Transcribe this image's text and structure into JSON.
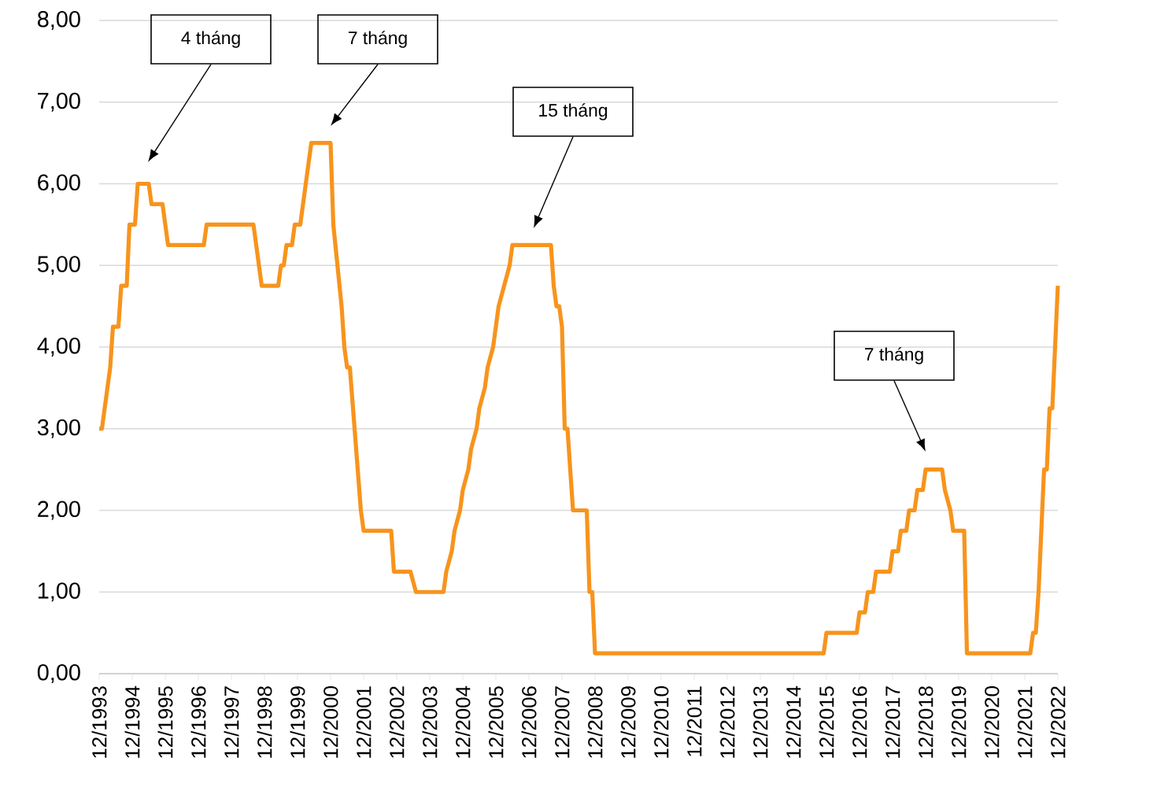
{
  "chart_data": {
    "type": "line",
    "x": [
      "1993-12",
      "1994-01",
      "1994-02",
      "1994-03",
      "1994-04",
      "1994-05",
      "1994-07",
      "1994-08",
      "1994-10",
      "1994-11",
      "1995-01",
      "1995-02",
      "1995-06",
      "1995-07",
      "1995-11",
      "1996-01",
      "1997-02",
      "1997-03",
      "1998-08",
      "1998-10",
      "1998-11",
      "1999-05",
      "1999-06",
      "1999-07",
      "1999-08",
      "1999-10",
      "1999-11",
      "2000-01",
      "2000-02",
      "2000-03",
      "2000-05",
      "2000-12",
      "2001-01",
      "2001-04",
      "2001-05",
      "2001-06",
      "2001-07",
      "2001-11",
      "2001-12",
      "2002-10",
      "2002-11",
      "2003-05",
      "2003-07",
      "2004-05",
      "2004-06",
      "2004-08",
      "2004-09",
      "2004-11",
      "2004-12",
      "2005-02",
      "2005-03",
      "2005-05",
      "2005-06",
      "2005-08",
      "2005-09",
      "2005-11",
      "2005-12",
      "2006-01",
      "2006-03",
      "2006-05",
      "2006-06",
      "2007-08",
      "2007-09",
      "2007-10",
      "2007-11",
      "2007-12",
      "2008-01",
      "2008-02",
      "2008-04",
      "2008-09",
      "2008-10",
      "2008-11",
      "2008-12",
      "2015-11",
      "2015-12",
      "2016-11",
      "2016-12",
      "2017-02",
      "2017-03",
      "2017-05",
      "2017-06",
      "2017-11",
      "2017-12",
      "2018-02",
      "2018-03",
      "2018-05",
      "2018-06",
      "2018-08",
      "2018-09",
      "2018-11",
      "2018-12",
      "2019-06",
      "2019-07",
      "2019-09",
      "2019-10",
      "2020-02",
      "2020-03",
      "2022-02",
      "2022-03",
      "2022-04",
      "2022-05",
      "2022-06",
      "2022-07",
      "2022-08",
      "2022-09",
      "2022-10",
      "2022-11",
      "2022-12"
    ],
    "series": [
      {
        "color": "#f7941d",
        "values": [
          3.0,
          3.0,
          3.25,
          3.5,
          3.75,
          4.25,
          4.25,
          4.75,
          4.75,
          5.5,
          5.5,
          6.0,
          6.0,
          5.75,
          5.75,
          5.25,
          5.25,
          5.5,
          5.5,
          5.0,
          4.75,
          4.75,
          5.0,
          5.0,
          5.25,
          5.25,
          5.5,
          5.5,
          5.75,
          6.0,
          6.5,
          6.5,
          5.5,
          4.5,
          4.0,
          3.75,
          3.75,
          2.0,
          1.75,
          1.75,
          1.25,
          1.25,
          1.0,
          1.0,
          1.25,
          1.5,
          1.75,
          2.0,
          2.25,
          2.5,
          2.75,
          3.0,
          3.25,
          3.5,
          3.75,
          4.0,
          4.25,
          4.5,
          4.75,
          5.0,
          5.25,
          5.25,
          4.75,
          4.5,
          4.5,
          4.25,
          3.0,
          3.0,
          2.0,
          2.0,
          1.0,
          1.0,
          0.25,
          0.25,
          0.5,
          0.5,
          0.75,
          0.75,
          1.0,
          1.0,
          1.25,
          1.25,
          1.5,
          1.5,
          1.75,
          1.75,
          2.0,
          2.0,
          2.25,
          2.25,
          2.5,
          2.5,
          2.25,
          2.0,
          1.75,
          1.75,
          0.25,
          0.25,
          0.5,
          0.5,
          1.0,
          1.75,
          2.5,
          2.5,
          3.25,
          3.25,
          4.0,
          4.75
        ]
      }
    ],
    "xlim": [
      "1993-12",
      "2022-12"
    ],
    "xticks": [
      {
        "value": "1993-12",
        "label": "12/1993"
      },
      {
        "value": "1994-12",
        "label": "12/1994"
      },
      {
        "value": "1995-12",
        "label": "12/1995"
      },
      {
        "value": "1996-12",
        "label": "12/1996"
      },
      {
        "value": "1997-12",
        "label": "12/1997"
      },
      {
        "value": "1998-12",
        "label": "12/1998"
      },
      {
        "value": "1999-12",
        "label": "12/1999"
      },
      {
        "value": "2000-12",
        "label": "12/2000"
      },
      {
        "value": "2001-12",
        "label": "12/2001"
      },
      {
        "value": "2002-12",
        "label": "12/2002"
      },
      {
        "value": "2003-12",
        "label": "12/2003"
      },
      {
        "value": "2004-12",
        "label": "12/2004"
      },
      {
        "value": "2005-12",
        "label": "12/2005"
      },
      {
        "value": "2006-12",
        "label": "12/2006"
      },
      {
        "value": "2007-12",
        "label": "12/2007"
      },
      {
        "value": "2008-12",
        "label": "12/2008"
      },
      {
        "value": "2009-12",
        "label": "12/2009"
      },
      {
        "value": "2010-12",
        "label": "12/2010"
      },
      {
        "value": "2011-12",
        "label": "12/2011"
      },
      {
        "value": "2012-12",
        "label": "12/2012"
      },
      {
        "value": "2013-12",
        "label": "12/2013"
      },
      {
        "value": "2014-12",
        "label": "12/2014"
      },
      {
        "value": "2015-12",
        "label": "12/2015"
      },
      {
        "value": "2016-12",
        "label": "12/2016"
      },
      {
        "value": "2017-12",
        "label": "12/2017"
      },
      {
        "value": "2018-12",
        "label": "12/2018"
      },
      {
        "value": "2019-12",
        "label": "12/2019"
      },
      {
        "value": "2020-12",
        "label": "12/2020"
      },
      {
        "value": "2021-12",
        "label": "12/2021"
      },
      {
        "value": "2022-12",
        "label": "12/2022"
      }
    ],
    "ylim": [
      0,
      8
    ],
    "yticks": [
      {
        "value": 0,
        "label": "0,00"
      },
      {
        "value": 1,
        "label": "1,00"
      },
      {
        "value": 2,
        "label": "2,00"
      },
      {
        "value": 3,
        "label": "3,00"
      },
      {
        "value": 4,
        "label": "4,00"
      },
      {
        "value": 5,
        "label": "5,00"
      },
      {
        "value": 6,
        "label": "6,00"
      },
      {
        "value": 7,
        "label": "7,00"
      },
      {
        "value": 8,
        "label": "8,00"
      }
    ],
    "grid": "y",
    "annotations": [
      "4 tháng",
      "7 tháng",
      "15 tháng",
      "7 tháng"
    ]
  }
}
